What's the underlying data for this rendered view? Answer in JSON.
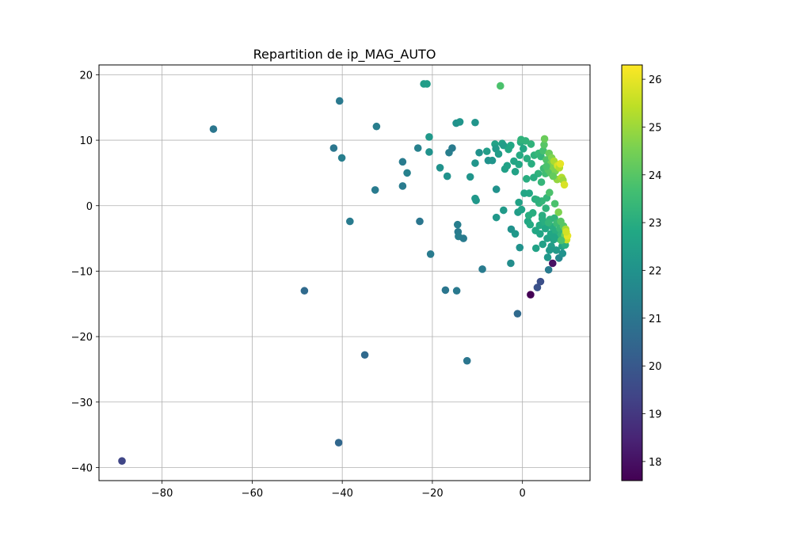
{
  "chart_data": {
    "type": "scatter",
    "title": "Repartition de ip_MAG_AUTO",
    "xlabel": "",
    "ylabel": "",
    "xlim": [
      -94,
      15
    ],
    "ylim": [
      -42,
      21.5
    ],
    "xticks": [
      -80,
      -60,
      -40,
      -20,
      0
    ],
    "xtick_labels": [
      "−80",
      "−60",
      "−40",
      "−20",
      "0"
    ],
    "yticks": [
      20,
      10,
      0,
      -10,
      -20,
      -30,
      -40
    ],
    "ytick_labels": [
      "20",
      "10",
      "0",
      "−10",
      "−20",
      "−30",
      "−40"
    ],
    "grid": true,
    "colorbar": {
      "range": [
        17.6,
        26.3
      ],
      "ticks": [
        18,
        19,
        20,
        21,
        22,
        23,
        24,
        25,
        26
      ],
      "tick_labels": [
        "18",
        "19",
        "20",
        "21",
        "22",
        "23",
        "24",
        "25",
        "26"
      ],
      "colormap": "viridis"
    },
    "points": [
      {
        "x": -88.9,
        "y": -39.0,
        "c": 19.4
      },
      {
        "x": -68.6,
        "y": 11.7,
        "c": 21.0
      },
      {
        "x": -48.4,
        "y": -13.0,
        "c": 20.6
      },
      {
        "x": -41.9,
        "y": 8.8,
        "c": 21.0
      },
      {
        "x": -40.6,
        "y": 16.0,
        "c": 21.1
      },
      {
        "x": -40.1,
        "y": 7.3,
        "c": 21.3
      },
      {
        "x": -40.8,
        "y": -36.2,
        "c": 20.5
      },
      {
        "x": -38.3,
        "y": -2.4,
        "c": 21.2
      },
      {
        "x": -35.0,
        "y": -22.8,
        "c": 20.6
      },
      {
        "x": -32.7,
        "y": 2.4,
        "c": 21.2
      },
      {
        "x": -32.4,
        "y": 12.1,
        "c": 21.3
      },
      {
        "x": -26.6,
        "y": 6.7,
        "c": 21.2
      },
      {
        "x": -26.6,
        "y": 3.0,
        "c": 21.2
      },
      {
        "x": -25.6,
        "y": 5.0,
        "c": 21.4
      },
      {
        "x": -23.2,
        "y": 8.8,
        "c": 21.4
      },
      {
        "x": -22.8,
        "y": -2.4,
        "c": 21.0
      },
      {
        "x": -21.9,
        "y": 18.6,
        "c": 22.4
      },
      {
        "x": -21.2,
        "y": 18.6,
        "c": 22.4
      },
      {
        "x": -20.7,
        "y": 10.5,
        "c": 22.2
      },
      {
        "x": -20.7,
        "y": 8.2,
        "c": 22.0
      },
      {
        "x": -20.4,
        "y": -7.4,
        "c": 21.2
      },
      {
        "x": -18.3,
        "y": 5.8,
        "c": 22.0
      },
      {
        "x": -17.1,
        "y": -12.9,
        "c": 21.0
      },
      {
        "x": -16.7,
        "y": 4.5,
        "c": 22.0
      },
      {
        "x": -16.3,
        "y": 8.1,
        "c": 21.3
      },
      {
        "x": -15.6,
        "y": 8.8,
        "c": 21.2
      },
      {
        "x": -14.7,
        "y": 12.6,
        "c": 22.0
      },
      {
        "x": -13.9,
        "y": 12.8,
        "c": 22.1
      },
      {
        "x": -14.6,
        "y": -13.0,
        "c": 21.1
      },
      {
        "x": -14.4,
        "y": -2.9,
        "c": 21.3
      },
      {
        "x": -14.3,
        "y": -4.0,
        "c": 21.2
      },
      {
        "x": -14.2,
        "y": -4.7,
        "c": 21.3
      },
      {
        "x": -13.1,
        "y": -5.0,
        "c": 21.2
      },
      {
        "x": -12.3,
        "y": -23.7,
        "c": 21.0
      },
      {
        "x": -11.6,
        "y": 4.4,
        "c": 22.1
      },
      {
        "x": -10.5,
        "y": 12.7,
        "c": 22.1
      },
      {
        "x": -10.5,
        "y": 1.1,
        "c": 22.2
      },
      {
        "x": -10.3,
        "y": 0.8,
        "c": 22.2
      },
      {
        "x": -10.5,
        "y": 6.5,
        "c": 22.1
      },
      {
        "x": -9.6,
        "y": 8.1,
        "c": 22.0
      },
      {
        "x": -8.9,
        "y": -9.7,
        "c": 21.2
      },
      {
        "x": -7.9,
        "y": 8.3,
        "c": 22.4
      },
      {
        "x": -7.6,
        "y": 6.9,
        "c": 22.0
      },
      {
        "x": -6.7,
        "y": 6.9,
        "c": 22.1
      },
      {
        "x": -6.1,
        "y": 9.4,
        "c": 22.6
      },
      {
        "x": -5.9,
        "y": 8.7,
        "c": 22.3
      },
      {
        "x": -5.8,
        "y": 2.5,
        "c": 22.0
      },
      {
        "x": -5.8,
        "y": -1.8,
        "c": 22.2
      },
      {
        "x": -5.3,
        "y": 7.9,
        "c": 22.4
      },
      {
        "x": -4.9,
        "y": 18.3,
        "c": 23.8
      },
      {
        "x": -4.5,
        "y": 9.5,
        "c": 22.6
      },
      {
        "x": -4.2,
        "y": 9.2,
        "c": 22.4
      },
      {
        "x": -3.9,
        "y": 5.6,
        "c": 22.5
      },
      {
        "x": -4.2,
        "y": -0.7,
        "c": 22.3
      },
      {
        "x": -3.4,
        "y": 6.1,
        "c": 22.6
      },
      {
        "x": -3.1,
        "y": 8.6,
        "c": 22.8
      },
      {
        "x": -2.6,
        "y": 9.2,
        "c": 22.8
      },
      {
        "x": -2.5,
        "y": -3.6,
        "c": 22.0
      },
      {
        "x": -2.6,
        "y": -8.8,
        "c": 21.8
      },
      {
        "x": -1.6,
        "y": -4.3,
        "c": 22.2
      },
      {
        "x": -1.6,
        "y": 5.2,
        "c": 22.6
      },
      {
        "x": -1.0,
        "y": -1.0,
        "c": 22.4
      },
      {
        "x": -0.8,
        "y": 6.3,
        "c": 22.8
      },
      {
        "x": -0.6,
        "y": 7.7,
        "c": 22.9
      },
      {
        "x": -0.4,
        "y": 9.7,
        "c": 23.0
      },
      {
        "x": -0.3,
        "y": 10.1,
        "c": 23.2
      },
      {
        "x": -0.6,
        "y": -6.4,
        "c": 22.0
      },
      {
        "x": -0.8,
        "y": 0.5,
        "c": 22.6
      },
      {
        "x": -1.1,
        "y": -16.5,
        "c": 20.6
      },
      {
        "x": -0.2,
        "y": -0.6,
        "c": 22.6
      },
      {
        "x": 0.2,
        "y": 8.7,
        "c": 22.8
      },
      {
        "x": 0.4,
        "y": 1.9,
        "c": 22.7
      },
      {
        "x": 0.7,
        "y": 9.9,
        "c": 23.2
      },
      {
        "x": 0.9,
        "y": 4.1,
        "c": 23.0
      },
      {
        "x": 1.2,
        "y": -2.4,
        "c": 22.8
      },
      {
        "x": 1.4,
        "y": -1.5,
        "c": 23.0
      },
      {
        "x": 1.5,
        "y": 1.9,
        "c": 22.8
      },
      {
        "x": 1.7,
        "y": -2.9,
        "c": 22.9
      },
      {
        "x": 1.8,
        "y": -13.6,
        "c": 17.6
      },
      {
        "x": 1.9,
        "y": 9.4,
        "c": 23.2
      },
      {
        "x": 2.0,
        "y": 6.4,
        "c": 23.0
      },
      {
        "x": 2.3,
        "y": -1.1,
        "c": 23.0
      },
      {
        "x": 2.6,
        "y": 7.7,
        "c": 23.2
      },
      {
        "x": 2.8,
        "y": 1.0,
        "c": 23.0
      },
      {
        "x": 2.9,
        "y": -3.8,
        "c": 22.8
      },
      {
        "x": 3.0,
        "y": -6.5,
        "c": 22.6
      },
      {
        "x": 3.3,
        "y": -12.5,
        "c": 19.8
      },
      {
        "x": 3.5,
        "y": 4.9,
        "c": 23.2
      },
      {
        "x": 3.6,
        "y": 8.0,
        "c": 23.4
      },
      {
        "x": 3.7,
        "y": 0.4,
        "c": 23.2
      },
      {
        "x": 3.8,
        "y": -3.0,
        "c": 22.9
      },
      {
        "x": 3.9,
        "y": -4.3,
        "c": 22.7
      },
      {
        "x": 4.0,
        "y": -11.6,
        "c": 19.7
      },
      {
        "x": 4.1,
        "y": 7.5,
        "c": 23.3
      },
      {
        "x": 4.2,
        "y": 3.6,
        "c": 23.3
      },
      {
        "x": 4.3,
        "y": 0.7,
        "c": 23.3
      },
      {
        "x": 4.4,
        "y": -1.5,
        "c": 23.0
      },
      {
        "x": 4.5,
        "y": -5.9,
        "c": 22.5
      },
      {
        "x": 4.6,
        "y": 8.4,
        "c": 23.7
      },
      {
        "x": 4.7,
        "y": 5.7,
        "c": 23.5
      },
      {
        "x": 4.8,
        "y": 9.3,
        "c": 24.0
      },
      {
        "x": 4.9,
        "y": 10.2,
        "c": 24.3
      },
      {
        "x": 5.0,
        "y": -2.6,
        "c": 23.0
      },
      {
        "x": 5.1,
        "y": -3.5,
        "c": 22.8
      },
      {
        "x": 5.1,
        "y": 4.9,
        "c": 23.6
      },
      {
        "x": 5.2,
        "y": -0.4,
        "c": 23.2
      },
      {
        "x": 5.3,
        "y": 7.0,
        "c": 23.9
      },
      {
        "x": 5.4,
        "y": 1.2,
        "c": 23.3
      },
      {
        "x": 5.5,
        "y": -5.0,
        "c": 22.6
      },
      {
        "x": 5.6,
        "y": -7.9,
        "c": 22.2
      },
      {
        "x": 5.7,
        "y": 5.5,
        "c": 24.0
      },
      {
        "x": 5.8,
        "y": -9.8,
        "c": 21.2
      },
      {
        "x": 5.9,
        "y": 8.0,
        "c": 24.3
      },
      {
        "x": 6.0,
        "y": 2.0,
        "c": 23.8
      },
      {
        "x": 6.1,
        "y": -2.1,
        "c": 23.2
      },
      {
        "x": 6.2,
        "y": 5.0,
        "c": 24.0
      },
      {
        "x": 6.3,
        "y": -4.3,
        "c": 22.8
      },
      {
        "x": 6.3,
        "y": 6.4,
        "c": 24.4
      },
      {
        "x": 6.4,
        "y": -6.2,
        "c": 22.4
      },
      {
        "x": 6.5,
        "y": 7.3,
        "c": 24.6
      },
      {
        "x": 6.6,
        "y": -3.2,
        "c": 23.0
      },
      {
        "x": 6.7,
        "y": -8.8,
        "c": 18.0
      },
      {
        "x": 6.8,
        "y": 5.9,
        "c": 24.6
      },
      {
        "x": 6.9,
        "y": -5.2,
        "c": 22.6
      },
      {
        "x": 7.0,
        "y": 6.8,
        "c": 25.2
      },
      {
        "x": 7.1,
        "y": -1.9,
        "c": 23.2
      },
      {
        "x": 7.2,
        "y": 0.3,
        "c": 23.8
      },
      {
        "x": 7.3,
        "y": 5.3,
        "c": 24.6
      },
      {
        "x": 7.4,
        "y": -3.9,
        "c": 23.0
      },
      {
        "x": 7.5,
        "y": -6.8,
        "c": 22.3
      },
      {
        "x": 7.6,
        "y": -2.7,
        "c": 23.5
      },
      {
        "x": 7.7,
        "y": 4.0,
        "c": 24.9
      },
      {
        "x": 7.8,
        "y": 6.1,
        "c": 25.8
      },
      {
        "x": 7.9,
        "y": -5.0,
        "c": 22.8
      },
      {
        "x": 8.0,
        "y": -1.0,
        "c": 24.6
      },
      {
        "x": 8.1,
        "y": -8.0,
        "c": 21.6
      },
      {
        "x": 8.2,
        "y": 5.8,
        "c": 25.3
      },
      {
        "x": 8.3,
        "y": -3.5,
        "c": 23.4
      },
      {
        "x": 8.4,
        "y": 6.4,
        "c": 26.0
      },
      {
        "x": 8.5,
        "y": -2.4,
        "c": 24.0
      },
      {
        "x": 8.6,
        "y": -4.4,
        "c": 23.3
      },
      {
        "x": 8.7,
        "y": 4.3,
        "c": 25.3
      },
      {
        "x": 8.8,
        "y": -6.2,
        "c": 22.6
      },
      {
        "x": 8.9,
        "y": -7.3,
        "c": 22.0
      },
      {
        "x": 9.0,
        "y": 3.9,
        "c": 25.0
      },
      {
        "x": 9.1,
        "y": -3.1,
        "c": 24.0
      },
      {
        "x": 9.2,
        "y": -5.4,
        "c": 23.6
      },
      {
        "x": 9.3,
        "y": 3.2,
        "c": 25.8
      },
      {
        "x": 9.4,
        "y": -4.5,
        "c": 24.4
      },
      {
        "x": 9.5,
        "y": -6.0,
        "c": 23.0
      },
      {
        "x": 9.6,
        "y": -3.6,
        "c": 25.2
      },
      {
        "x": 9.8,
        "y": -5.2,
        "c": 25.6
      },
      {
        "x": 10.0,
        "y": -4.6,
        "c": 26.0
      },
      {
        "x": 9.7,
        "y": -4.0,
        "c": 25.7
      },
      {
        "x": 5.3,
        "y": 6.0,
        "c": 23.8
      },
      {
        "x": 6.8,
        "y": 4.5,
        "c": 24.2
      },
      {
        "x": 4.4,
        "y": -2.0,
        "c": 23.0
      },
      {
        "x": 5.8,
        "y": -2.6,
        "c": 23.3
      },
      {
        "x": 7.0,
        "y": -4.8,
        "c": 22.7
      },
      {
        "x": 6.0,
        "y": -6.8,
        "c": 22.3
      },
      {
        "x": 8.6,
        "y": -5.3,
        "c": 23.8
      },
      {
        "x": 3.2,
        "y": 0.9,
        "c": 23.1
      },
      {
        "x": 2.5,
        "y": 4.3,
        "c": 23.0
      },
      {
        "x": 1.0,
        "y": 7.2,
        "c": 23.0
      },
      {
        "x": -1.9,
        "y": 6.8,
        "c": 22.7
      }
    ]
  }
}
